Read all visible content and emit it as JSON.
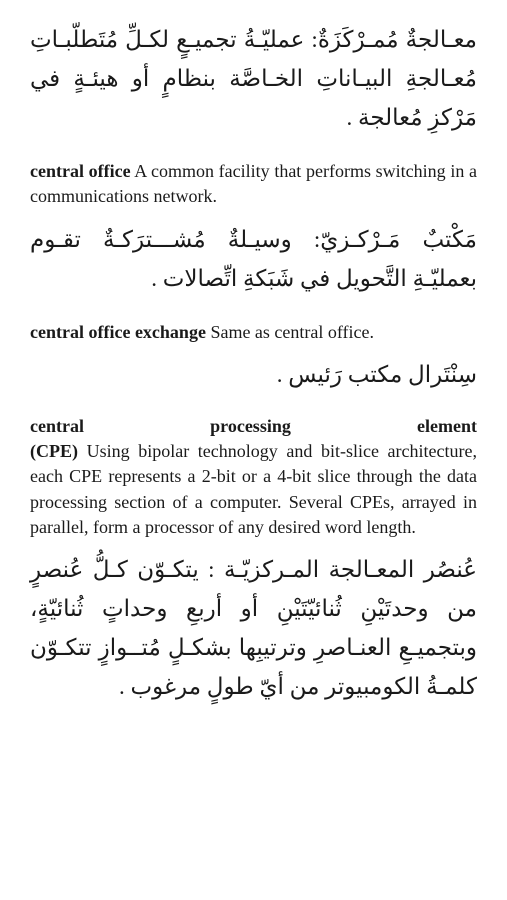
{
  "entries": [
    {
      "arabic": "معـالجةٌ مُمـرْكَزَةٌ: عمليّـةُ تجميـعٍ لكـلِّ مُتَطلّبـاتِ مُعـالجةِ البيـاناتِ الخـاصَّة بنظامٍ أو هيئـةٍ في مَرْكزِ مُعالجة ."
    },
    {
      "english_term": "central office",
      "english_def": "   A common facility that performs switching in a communications network.",
      "arabic": "مَكْتبٌ مَـرْكـزيّ: وسيـلةٌ مُشـــترَكـةٌ تقـوم بعمليّـةِ التَّحويل في شَبَكةِ اتِّصالات ."
    },
    {
      "english_term": "central office exchange",
      "english_def": "   Same as central office.",
      "arabic": "سِنْتَرال مكتب رَئيس ."
    },
    {
      "english_term_parts": [
        "central",
        "processing",
        "element"
      ],
      "abbrev": "(CPE)",
      "english_def": "   Using bipolar technology and bit-slice architecture, each CPE represents a 2-bit or a 4-bit slice through the data processing section of a computer. Several CPEs, arrayed in parallel, form a processor of any desired word length.",
      "arabic": "عُنصُر المعـالجة المـركزيّـة : يتكـوّن كـلُّ عُنصرٍ من وحدتَيْنِ ثُنائيّتَيْنِ أو أربعِ وحداتٍ ثُنائيّةٍ، وبتجميـعِ العنـاصرِ وترتيبِها بشكـلٍ مُتــوازٍ تتكـوّن كلمـةُ الكومبيوتر من أيّ طولٍ مرغوب ."
    }
  ]
}
